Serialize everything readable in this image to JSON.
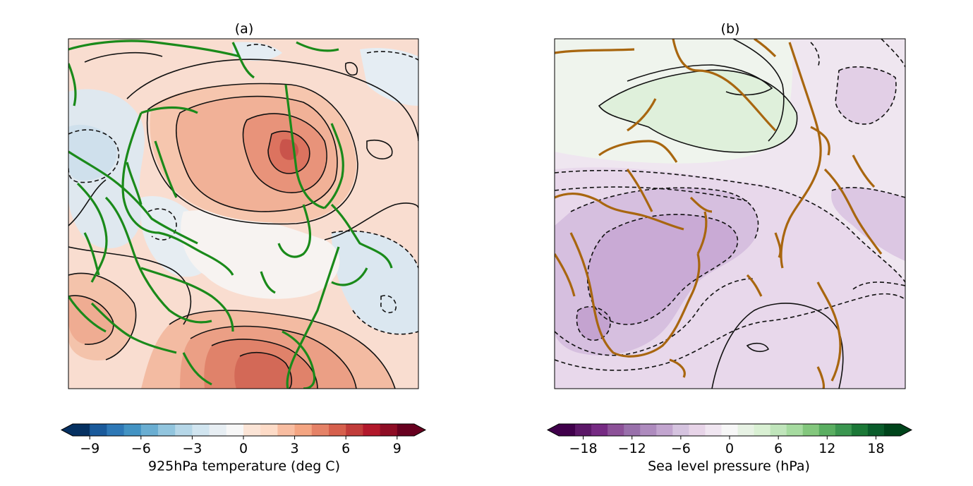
{
  "panels": [
    {
      "title": "(a)",
      "colorbar": {
        "label": "925hPa temperature (deg C)",
        "ticks": [
          -9,
          -6,
          -3,
          0,
          3,
          6,
          9
        ],
        "tick_labels": [
          "−9",
          "−6",
          "−3",
          "0",
          "3",
          "6",
          "9"
        ],
        "range": [
          -10,
          10
        ],
        "levels_step": 1,
        "extend": "both",
        "colors": [
          "#053061",
          "#1a5a9b",
          "#2e78b6",
          "#4393c3",
          "#6aaed2",
          "#92c5de",
          "#b6d7e8",
          "#d1e5f0",
          "#e7eef3",
          "#f7f7f7",
          "#fbe4d6",
          "#fddbc7",
          "#f8bda1",
          "#f4a582",
          "#e58267",
          "#d6604d",
          "#c13c3a",
          "#b2182b",
          "#8e0d25",
          "#67001f"
        ],
        "extend_low_color": "#053061",
        "extend_high_color": "#67001f"
      },
      "coast_color": "#1a8a1a"
    },
    {
      "title": "(b)",
      "colorbar": {
        "label": "Sea level pressure (hPa)",
        "ticks": [
          -18,
          -12,
          -6,
          0,
          6,
          12,
          18
        ],
        "tick_labels": [
          "−18",
          "−12",
          "−6",
          "0",
          "6",
          "12",
          "18"
        ],
        "range": [
          -21,
          21
        ],
        "levels_step": 2,
        "extend": "both",
        "colors": [
          "#40004b",
          "#5c1868",
          "#762a83",
          "#8c5198",
          "#9970ab",
          "#ae8bbe",
          "#c2a5cf",
          "#d5c3df",
          "#e7d4e8",
          "#f0e6f1",
          "#f7f7f7",
          "#e7f2e4",
          "#d9f0d3",
          "#c0e5bb",
          "#a6dba0",
          "#83c77d",
          "#5aae61",
          "#3b9650",
          "#1b7837",
          "#0a5c2b",
          "#00441b"
        ],
        "extend_low_color": "#40004b",
        "extend_high_color": "#00441b"
      },
      "coast_color": "#a8660f"
    }
  ]
}
